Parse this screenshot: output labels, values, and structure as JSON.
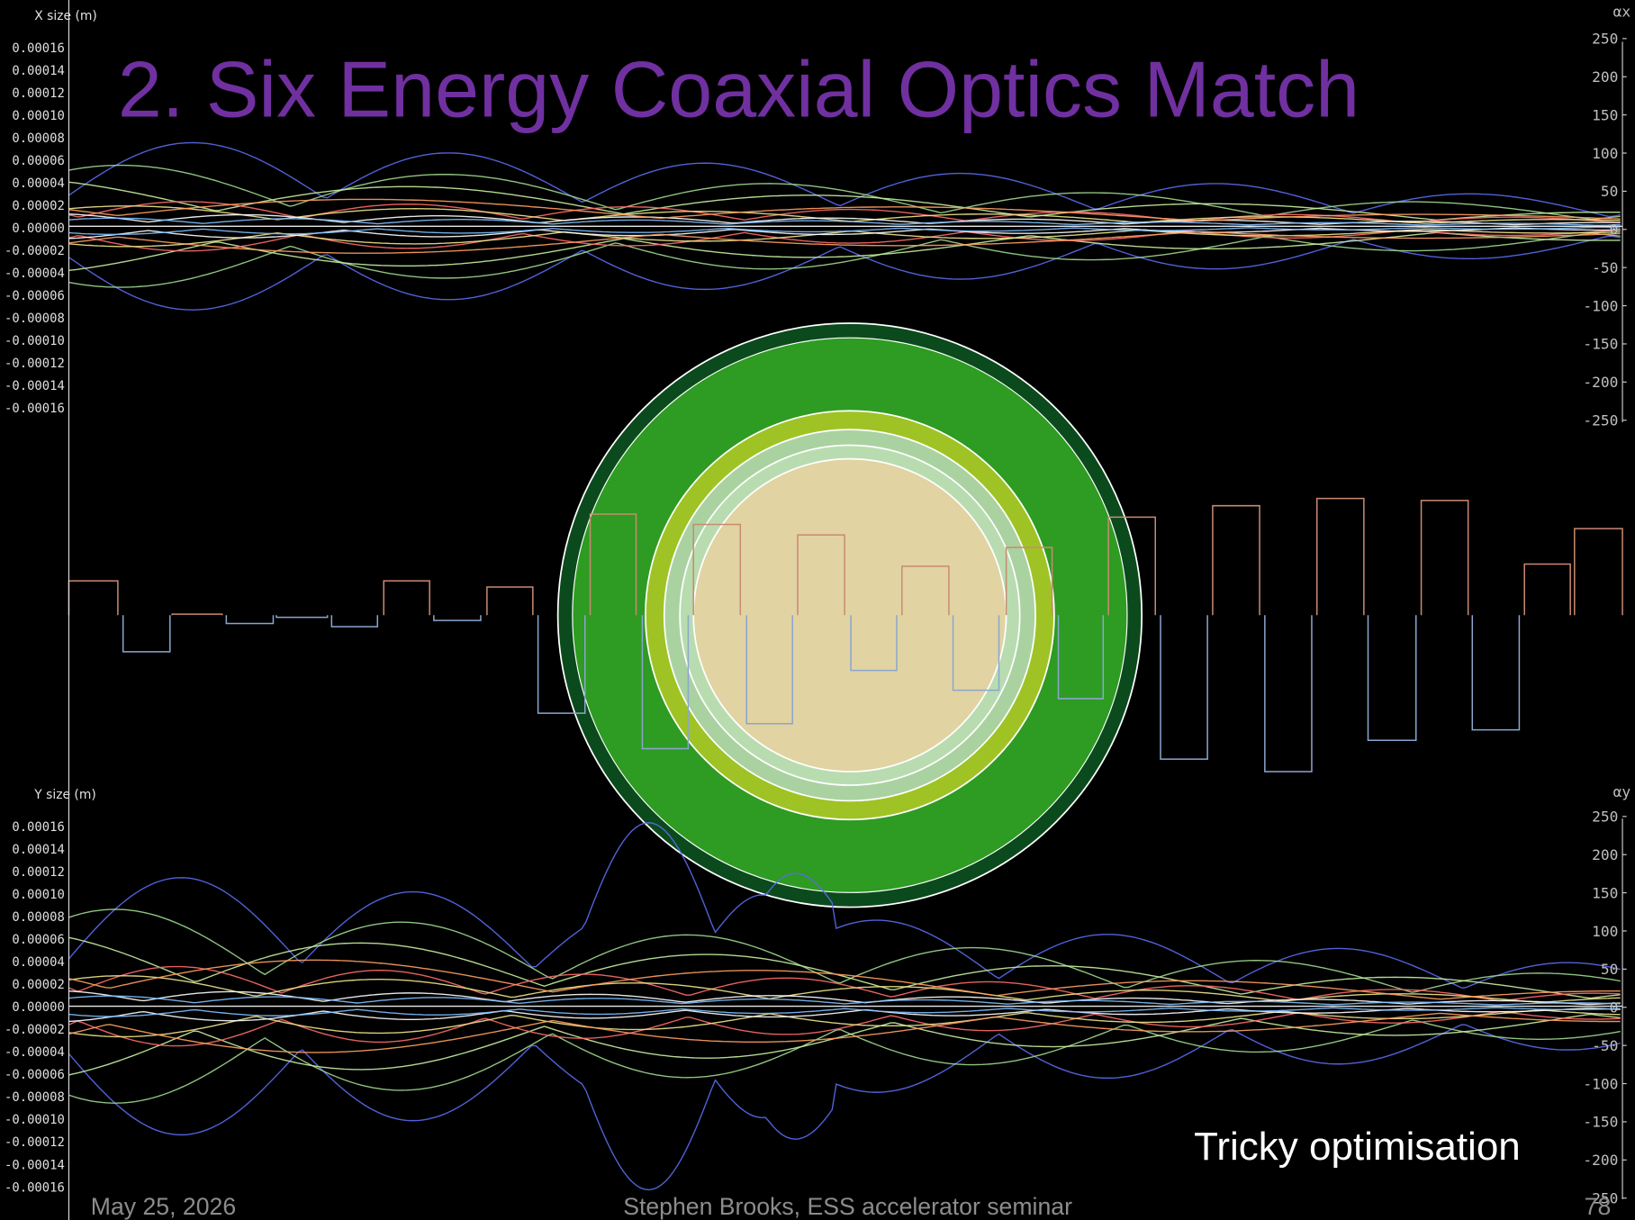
{
  "title": "2. Six Energy Coaxial Optics Match",
  "x_plot": {
    "axis_label": "X size (m)",
    "right_axis_label": "αx",
    "ticks": [
      "0.00016",
      "0.00014",
      "0.00012",
      "0.00010",
      "0.00008",
      "0.00006",
      "0.00004",
      "0.00002",
      "0.00000",
      "-0.00002",
      "-0.00004",
      "-0.00006",
      "-0.00008",
      "-0.00010",
      "-0.00012",
      "-0.00014",
      "-0.00016"
    ],
    "right_ticks": [
      "250",
      "200",
      "150",
      "100",
      "50",
      "0",
      "-50",
      "-100",
      "-150",
      "-200",
      "-250"
    ]
  },
  "y_plot": {
    "axis_label": "Y size (m)",
    "right_axis_label": "αy",
    "ticks": [
      "0.00016",
      "0.00014",
      "0.00012",
      "0.00010",
      "0.00008",
      "0.00006",
      "0.00004",
      "0.00002",
      "0.00000",
      "-0.00002",
      "-0.00004",
      "-0.00006",
      "-0.00008",
      "-0.00010",
      "-0.00012",
      "-0.00014",
      "-0.00016"
    ],
    "right_ticks": [
      "250",
      "200",
      "150",
      "100",
      "50",
      "0",
      "-50",
      "-100",
      "-150",
      "-200",
      "-250"
    ]
  },
  "annotation": "Tricky optimisation",
  "footer": {
    "date": "May 25, 2026",
    "author": "Stephen Brooks, ESS accelerator seminar",
    "page": "78"
  }
}
